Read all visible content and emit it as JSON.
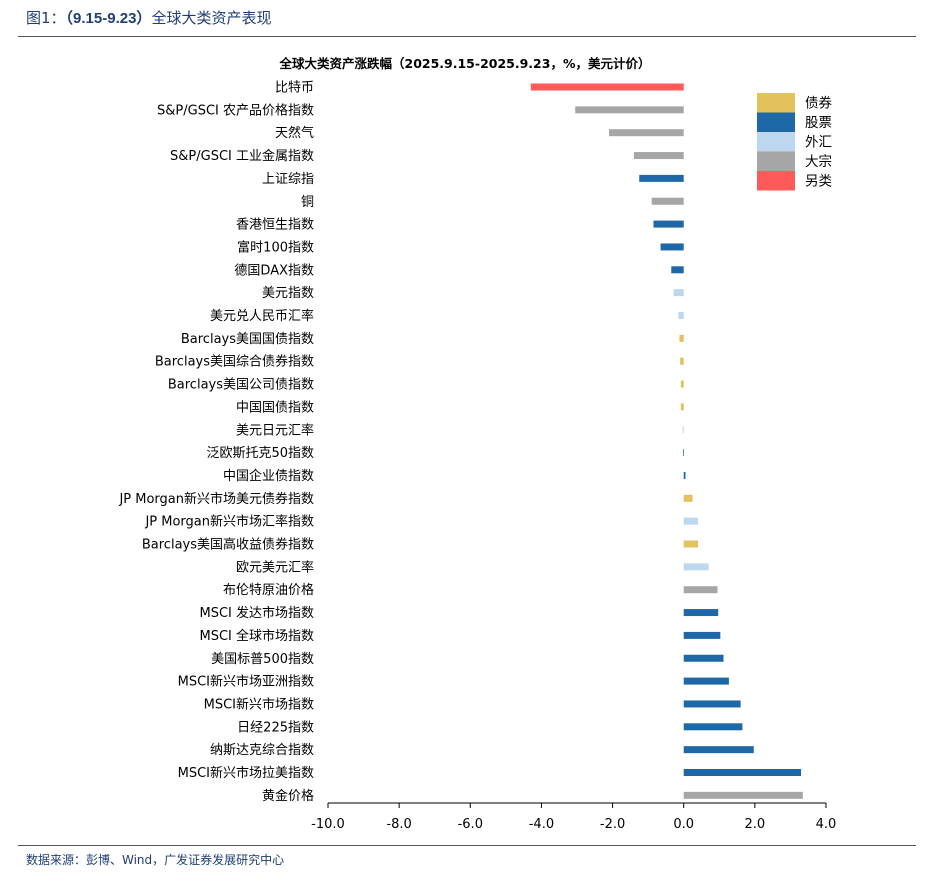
{
  "figure": {
    "title_prefix": "图1：",
    "title_period": "（9.15-9.23）",
    "title_text": "全球大类资产表现",
    "source": "数据来源：彭博、Wind，广发证券发展研究中心"
  },
  "colors": {
    "债券": "#e3c15c",
    "股票": "#1f68a8",
    "外汇": "#bdd7ee",
    "大宗": "#a6a6a6",
    "另类": "#ff5a5a"
  },
  "chart_data": {
    "type": "bar",
    "orientation": "horizontal",
    "title": "全球大类资产涨跌幅（2025.9.15-2025.9.23，%，美元计价）",
    "xlim": [
      -10.0,
      4.0
    ],
    "xticks": [
      "-10.0",
      "-8.0",
      "-6.0",
      "-4.0",
      "-2.0",
      "0.0",
      "2.0",
      "4.0"
    ],
    "grid": false,
    "legend_position": "top-right",
    "legend": [
      "债券",
      "股票",
      "外汇",
      "大宗",
      "另类"
    ],
    "categories": [
      "比特币",
      "S&P/GSCI 农产品价格指数",
      "天然气",
      "S&P/GSCI 工业金属指数",
      "上证综指",
      "铜",
      "香港恒生指数",
      "富时100指数",
      "德国DAX指数",
      "美元指数",
      "美元兑人民币汇率",
      "Barclays美国国债指数",
      "Barclays美国综合债券指数",
      "Barclays美国公司债指数",
      "中国国债指数",
      "美元日元汇率",
      "泛欧斯托克50指数",
      "中国企业债指数",
      "JP Morgan新兴市场美元债券指数",
      "JP Morgan新兴市场汇率指数",
      "Barclays美国高收益债券指数",
      "欧元美元汇率",
      "布伦特原油价格",
      "MSCI 发达市场指数",
      "MSCI 全球市场指数",
      "美国标普500指数",
      "MSCI新兴市场亚洲指数",
      "MSCI新兴市场指数",
      "日经225指数",
      "纳斯达克综合指数",
      "MSCI新兴市场拉美指数",
      "黄金价格"
    ],
    "values": [
      -4.3,
      -3.05,
      -2.1,
      -1.4,
      -1.25,
      -0.9,
      -0.85,
      -0.65,
      -0.35,
      -0.28,
      -0.15,
      -0.12,
      -0.1,
      -0.08,
      -0.08,
      -0.03,
      -0.02,
      0.05,
      0.25,
      0.4,
      0.4,
      0.7,
      0.95,
      0.97,
      1.03,
      1.12,
      1.27,
      1.6,
      1.65,
      1.97,
      3.3,
      3.35
    ],
    "asset_class": [
      "另类",
      "大宗",
      "大宗",
      "大宗",
      "股票",
      "大宗",
      "股票",
      "股票",
      "股票",
      "外汇",
      "外汇",
      "债券",
      "债券",
      "债券",
      "债券",
      "外汇",
      "股票",
      "股票",
      "债券",
      "外汇",
      "债券",
      "外汇",
      "大宗",
      "股票",
      "股票",
      "股票",
      "股票",
      "股票",
      "股票",
      "股票",
      "股票",
      "大宗"
    ]
  }
}
